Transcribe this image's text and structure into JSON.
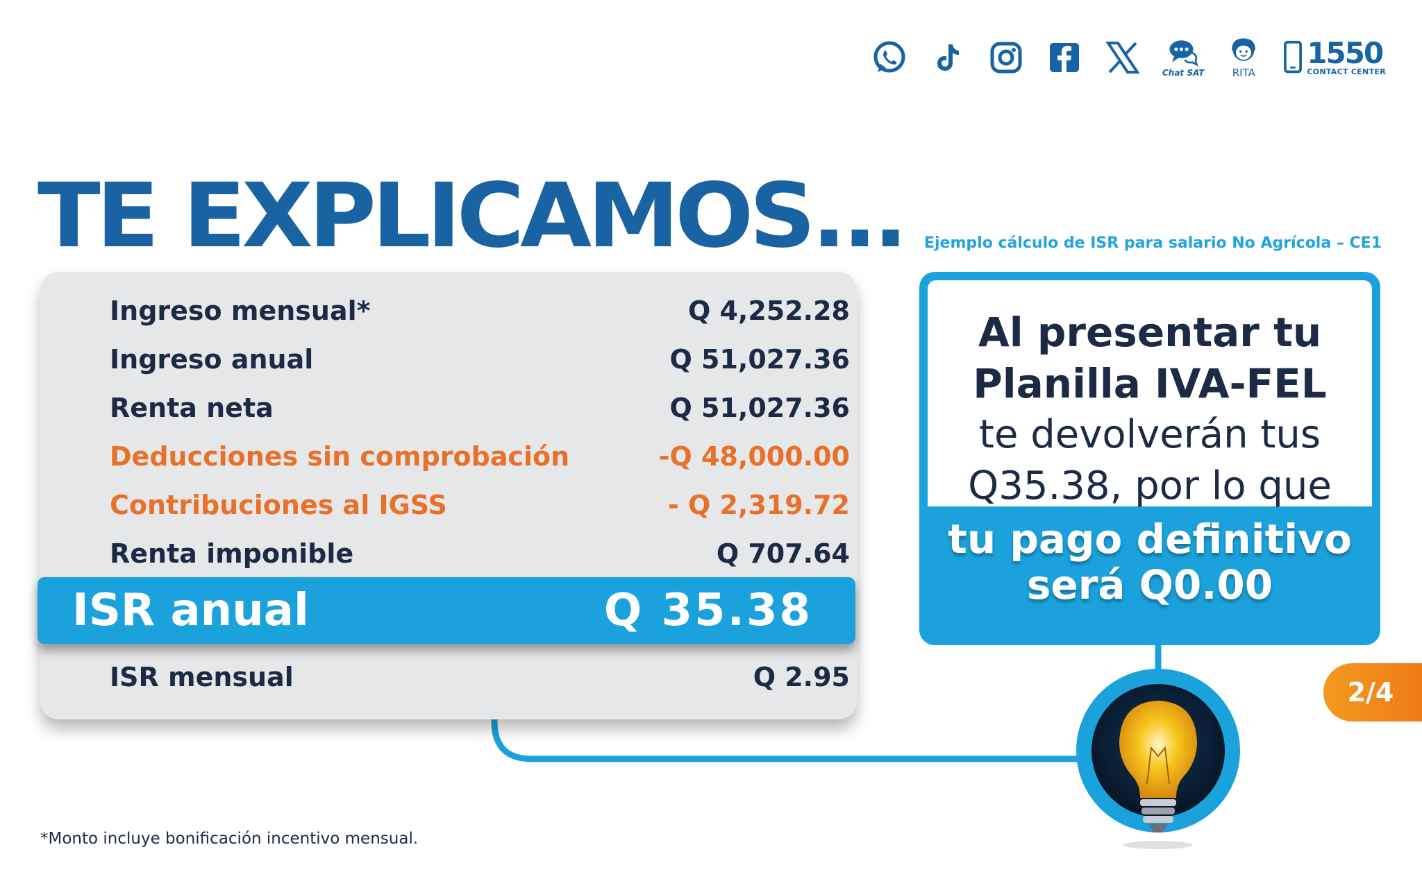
{
  "social": {
    "icons": [
      "whatsapp-icon",
      "tiktok-icon",
      "instagram-icon",
      "facebook-icon",
      "x-icon",
      "chat-sat-icon",
      "rita-icon",
      "phone-icon"
    ],
    "chat_label": "Chat SAT",
    "rita_label": "RITA",
    "contact_number": "1550",
    "contact_label": "CONTACT CENTER"
  },
  "headline": "TE EXPLICAMOS...",
  "table": {
    "rows": [
      {
        "label": "Ingreso mensual*",
        "value": "Q 4,252.28"
      },
      {
        "label": "Ingreso anual",
        "value": "Q 51,027.36"
      },
      {
        "label": "Renta neta",
        "value": "Q 51,027.36"
      },
      {
        "label": "Deducciones sin comprobación",
        "value": "-Q 48,000.00"
      },
      {
        "label": "Contribuciones al IGSS",
        "value": "- Q 2,319.72"
      },
      {
        "label": "Renta imponible",
        "value": "Q 707.64"
      }
    ],
    "highlight": {
      "label": "ISR anual",
      "value": "Q 35.38"
    },
    "last": {
      "label": "ISR mensual",
      "value": "Q 2.95"
    }
  },
  "right": {
    "subtitle": "Ejemplo cálculo de ISR para salario No Agrícola – CE1",
    "line1": "Al presentar tu",
    "line2": "Planilla IVA-FEL",
    "line3": "te devolverán tus",
    "line4": "Q35.38, por lo que",
    "bottom1": "tu pago definitivo",
    "bottom2": "será Q0.00"
  },
  "page_badge": "2/4",
  "footnote": "*Monto incluye bonificación incentivo mensual.",
  "colors": {
    "brand_blue": "#1a63a2",
    "accent_cyan": "#1ba2dc",
    "orange": "#e8712a",
    "badge_orange": "#f39a1e"
  }
}
